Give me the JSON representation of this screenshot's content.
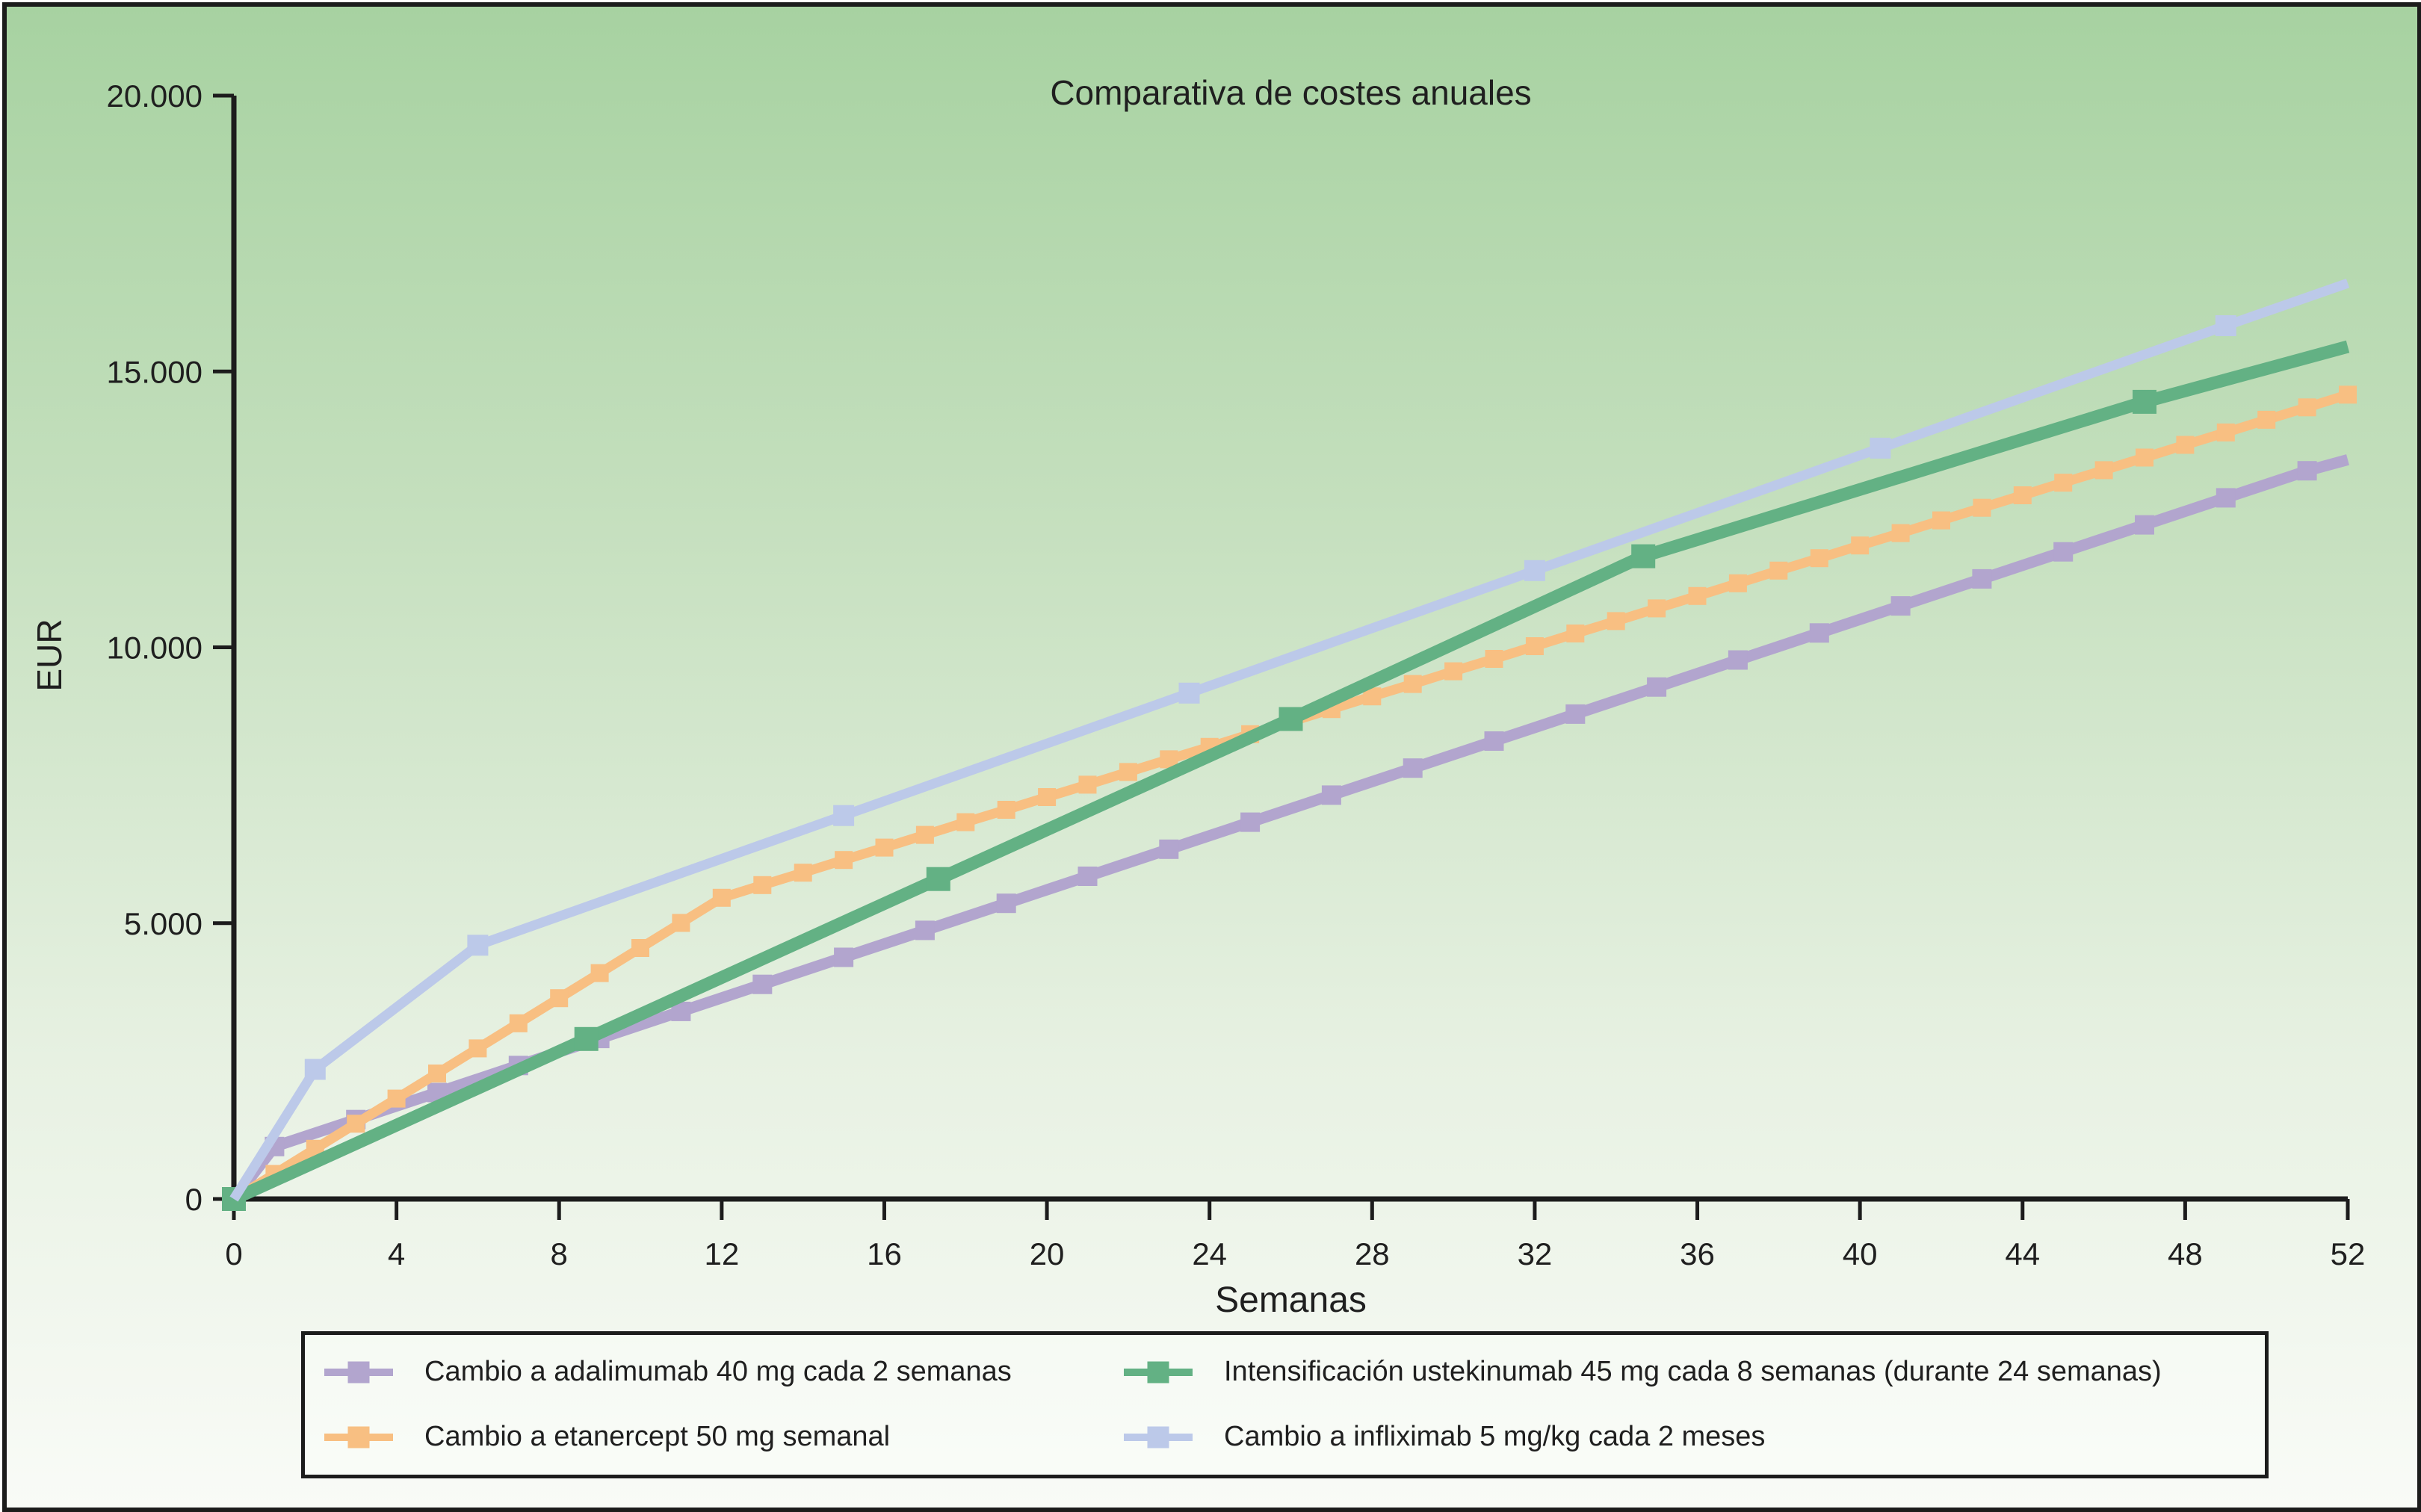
{
  "title": "Comparativa de costes anuales",
  "axes": {
    "x": {
      "label": "Semanas",
      "min": 0,
      "max": 52,
      "ticks": [
        {
          "v": 0,
          "t": "0"
        },
        {
          "v": 4,
          "t": "4"
        },
        {
          "v": 8,
          "t": "8"
        },
        {
          "v": 12,
          "t": "12"
        },
        {
          "v": 16,
          "t": "16"
        },
        {
          "v": 20,
          "t": "20"
        },
        {
          "v": 24,
          "t": "24"
        },
        {
          "v": 28,
          "t": "28"
        },
        {
          "v": 32,
          "t": "32"
        },
        {
          "v": 36,
          "t": "36"
        },
        {
          "v": 40,
          "t": "40"
        },
        {
          "v": 44,
          "t": "44"
        },
        {
          "v": 48,
          "t": "48"
        },
        {
          "v": 52,
          "t": "52"
        }
      ]
    },
    "y": {
      "label": "EUR",
      "min": 0,
      "max": 20000,
      "ticks": [
        {
          "v": 0,
          "t": "0"
        },
        {
          "v": 5000,
          "t": "5.000"
        },
        {
          "v": 10000,
          "t": "10.000"
        },
        {
          "v": 15000,
          "t": "15.000"
        },
        {
          "v": 20000,
          "t": "20.000"
        }
      ]
    }
  },
  "chart_data": {
    "type": "line",
    "title": "Comparativa de costes anuales",
    "xlabel": "Semanas",
    "ylabel": "EUR",
    "xlim": [
      0,
      52
    ],
    "ylim": [
      0,
      20000
    ],
    "legend_position": "bottom",
    "grid": false,
    "series": [
      {
        "name": "Cambio a adalimumab 40 mg cada 2 semanas",
        "color": "#b2a5ce",
        "line_width": 15,
        "marker_size": 26,
        "marker": "square",
        "points": [
          [
            0,
            0,
            0
          ],
          [
            1,
            950,
            1
          ],
          [
            3,
            1440,
            1
          ],
          [
            5,
            1930,
            1
          ],
          [
            7,
            2420,
            1
          ],
          [
            9,
            2910,
            1
          ],
          [
            11,
            3400,
            1
          ],
          [
            13,
            3890,
            1
          ],
          [
            15,
            4380,
            1
          ],
          [
            17,
            4870,
            1
          ],
          [
            19,
            5360,
            1
          ],
          [
            21,
            5850,
            1
          ],
          [
            23,
            6340,
            1
          ],
          [
            25,
            6830,
            1
          ],
          [
            27,
            7320,
            1
          ],
          [
            29,
            7810,
            1
          ],
          [
            31,
            8300,
            1
          ],
          [
            33,
            8790,
            1
          ],
          [
            35,
            9280,
            1
          ],
          [
            37,
            9770,
            1
          ],
          [
            39,
            10260,
            1
          ],
          [
            41,
            10750,
            1
          ],
          [
            43,
            11240,
            1
          ],
          [
            45,
            11730,
            1
          ],
          [
            47,
            12220,
            1
          ],
          [
            49,
            12710,
            1
          ],
          [
            51,
            13200,
            1
          ],
          [
            52,
            13400,
            0
          ]
        ]
      },
      {
        "name": "Cambio a etanercept 50 mg semanal",
        "color": "#f8bf82",
        "line_width": 13,
        "marker_size": 24,
        "marker": "square",
        "points": [
          [
            0,
            0,
            0
          ],
          [
            1,
            455,
            1
          ],
          [
            2,
            910,
            1
          ],
          [
            3,
            1365,
            1
          ],
          [
            4,
            1820,
            1
          ],
          [
            5,
            2275,
            1
          ],
          [
            6,
            2730,
            1
          ],
          [
            7,
            3185,
            1
          ],
          [
            8,
            3640,
            1
          ],
          [
            9,
            4095,
            1
          ],
          [
            10,
            4550,
            1
          ],
          [
            11,
            5005,
            1
          ],
          [
            12,
            5460,
            1
          ],
          [
            13,
            5690,
            1
          ],
          [
            14,
            5915,
            1
          ],
          [
            15,
            6145,
            1
          ],
          [
            16,
            6370,
            1
          ],
          [
            17,
            6600,
            1
          ],
          [
            18,
            6830,
            1
          ],
          [
            19,
            7055,
            1
          ],
          [
            20,
            7285,
            1
          ],
          [
            21,
            7510,
            1
          ],
          [
            22,
            7740,
            1
          ],
          [
            23,
            7970,
            1
          ],
          [
            24,
            8195,
            1
          ],
          [
            25,
            8425,
            1
          ],
          [
            26,
            8650,
            1
          ],
          [
            27,
            8880,
            1
          ],
          [
            28,
            9110,
            1
          ],
          [
            29,
            9335,
            1
          ],
          [
            30,
            9565,
            1
          ],
          [
            31,
            9790,
            1
          ],
          [
            32,
            10020,
            1
          ],
          [
            33,
            10250,
            1
          ],
          [
            34,
            10475,
            1
          ],
          [
            35,
            10705,
            1
          ],
          [
            36,
            10930,
            1
          ],
          [
            37,
            11160,
            1
          ],
          [
            38,
            11390,
            1
          ],
          [
            39,
            11615,
            1
          ],
          [
            40,
            11845,
            1
          ],
          [
            41,
            12070,
            1
          ],
          [
            42,
            12300,
            1
          ],
          [
            43,
            12530,
            1
          ],
          [
            44,
            12755,
            1
          ],
          [
            45,
            12985,
            1
          ],
          [
            46,
            13210,
            1
          ],
          [
            47,
            13440,
            1
          ],
          [
            48,
            13670,
            1
          ],
          [
            49,
            13895,
            1
          ],
          [
            50,
            14125,
            1
          ],
          [
            51,
            14350,
            1
          ],
          [
            52,
            14580,
            1
          ]
        ]
      },
      {
        "name": "Intensificación ustekinumab 45 mg cada 8 semanas (durante 24 semanas)",
        "color": "#63b184",
        "line_width": 17,
        "marker_size": 32,
        "marker": "square",
        "points": [
          [
            0,
            0,
            1
          ],
          [
            8.67,
            2900,
            1
          ],
          [
            17.33,
            5800,
            1
          ],
          [
            26,
            8700,
            1
          ],
          [
            34.67,
            11650,
            1
          ],
          [
            47,
            14450,
            1
          ],
          [
            52,
            15450,
            0
          ]
        ]
      },
      {
        "name": "Cambio a infliximab 5 mg/kg cada 2 meses",
        "color": "#bcc9e9",
        "line_width": 13,
        "marker_size": 28,
        "marker": "square",
        "points": [
          [
            0,
            0,
            0
          ],
          [
            2,
            2350,
            1
          ],
          [
            6,
            4600,
            1
          ],
          [
            15,
            6950,
            1
          ],
          [
            23.5,
            9170,
            1
          ],
          [
            32,
            11390,
            1
          ],
          [
            40.5,
            13610,
            1
          ],
          [
            49,
            15830,
            1
          ],
          [
            52,
            16600,
            0
          ]
        ]
      }
    ]
  },
  "legend": {
    "items": [
      {
        "label": "Cambio a adalimumab 40 mg cada 2 semanas",
        "color": "#b2a5ce"
      },
      {
        "label": "Intensificación ustekinumab 45 mg cada 8 semanas (durante 24 semanas)",
        "color": "#63b184"
      },
      {
        "label": "Cambio a etanercept 50 mg semanal",
        "color": "#f8bf82"
      },
      {
        "label": "Cambio a infliximab 5 mg/kg cada 2 meses",
        "color": "#bcc9e9"
      }
    ]
  }
}
